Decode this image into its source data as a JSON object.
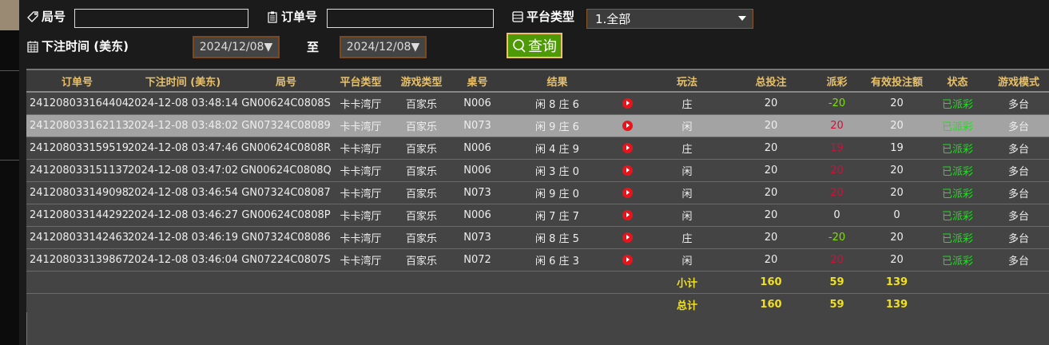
{
  "filters": {
    "round_label": "局号",
    "round_value": "",
    "order_label": "订单号",
    "order_value": "",
    "platform_label": "平台类型",
    "platform_value": "1.全部",
    "time_label": "下注时间 (美东)",
    "date_from": "2024/12/08▼",
    "to_label": "至",
    "date_to": "2024/12/08▼",
    "query_label": "查询"
  },
  "columns": [
    "订单号",
    "下注时间 (美东)",
    "局号",
    "平台类型",
    "游戏类型",
    "桌号",
    "结果",
    "",
    "玩法",
    "总投注",
    "派彩",
    "有效投注额",
    "状态",
    "游戏模式"
  ],
  "rows": [
    {
      "order": "241208033164404",
      "time": "2024-12-08 03:48:14",
      "round": "GN00624C0808S",
      "platform": "卡卡湾厅",
      "game": "百家乐",
      "table": "N006",
      "result": "闲 8 庄 6",
      "bet": "庄",
      "total": "20",
      "payout": "-20",
      "valid": "20",
      "status": "已派彩",
      "mode": "多台"
    },
    {
      "order": "241208033162113",
      "time": "2024-12-08 03:48:02",
      "round": "GN07324C08089",
      "platform": "卡卡湾厅",
      "game": "百家乐",
      "table": "N073",
      "result": "闲 9 庄 6",
      "bet": "闲",
      "total": "20",
      "payout": "20",
      "valid": "20",
      "status": "已派彩",
      "mode": "多台"
    },
    {
      "order": "241208033159519",
      "time": "2024-12-08 03:47:46",
      "round": "GN00624C0808R",
      "platform": "卡卡湾厅",
      "game": "百家乐",
      "table": "N006",
      "result": "闲 4 庄 9",
      "bet": "庄",
      "total": "20",
      "payout": "19",
      "valid": "19",
      "status": "已派彩",
      "mode": "多台"
    },
    {
      "order": "241208033151137",
      "time": "2024-12-08 03:47:02",
      "round": "GN00624C0808Q",
      "platform": "卡卡湾厅",
      "game": "百家乐",
      "table": "N006",
      "result": "闲 3 庄 0",
      "bet": "闲",
      "total": "20",
      "payout": "20",
      "valid": "20",
      "status": "已派彩",
      "mode": "多台"
    },
    {
      "order": "241208033149098",
      "time": "2024-12-08 03:46:54",
      "round": "GN07324C08087",
      "platform": "卡卡湾厅",
      "game": "百家乐",
      "table": "N073",
      "result": "闲 9 庄 0",
      "bet": "闲",
      "total": "20",
      "payout": "20",
      "valid": "20",
      "status": "已派彩",
      "mode": "多台"
    },
    {
      "order": "241208033144292",
      "time": "2024-12-08 03:46:27",
      "round": "GN00624C0808P",
      "platform": "卡卡湾厅",
      "game": "百家乐",
      "table": "N006",
      "result": "闲 7 庄 7",
      "bet": "闲",
      "total": "20",
      "payout": "0",
      "valid": "0",
      "status": "已派彩",
      "mode": "多台"
    },
    {
      "order": "241208033142463",
      "time": "2024-12-08 03:46:19",
      "round": "GN07324C08086",
      "platform": "卡卡湾厅",
      "game": "百家乐",
      "table": "N073",
      "result": "闲 8 庄 5",
      "bet": "庄",
      "total": "20",
      "payout": "-20",
      "valid": "20",
      "status": "已派彩",
      "mode": "多台"
    },
    {
      "order": "241208033139867",
      "time": "2024-12-08 03:46:04",
      "round": "GN07224C0807S",
      "platform": "卡卡湾厅",
      "game": "百家乐",
      "table": "N072",
      "result": "闲 6 庄 3",
      "bet": "闲",
      "total": "20",
      "payout": "20",
      "valid": "20",
      "status": "已派彩",
      "mode": "多台"
    }
  ],
  "subtotal": {
    "label": "小计",
    "total": "160",
    "payout": "59",
    "valid": "139"
  },
  "grandtotal": {
    "label": "总计",
    "total": "160",
    "payout": "59",
    "valid": "139"
  },
  "colors": {
    "accent": "#4e9a06",
    "header_text": "#e8c06a",
    "positive": "#d0103a",
    "negative": "#7ee000",
    "status": "#22dd22",
    "summary": "#f0e020"
  }
}
